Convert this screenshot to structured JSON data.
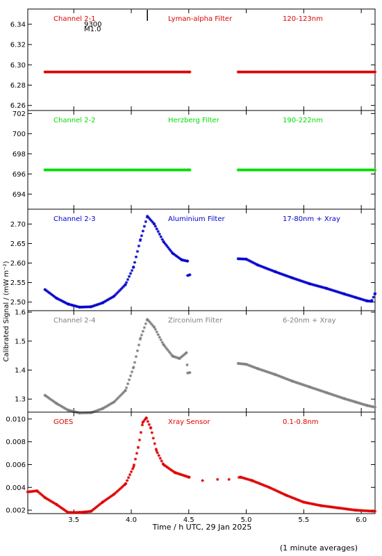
{
  "figure": {
    "ylabel": "Calibrated Signal / (mW m⁻²)",
    "xlabel": "Time / h UTC, 29 Jan 2025",
    "footnote": "(1 minute averages)",
    "flare_marker": {
      "x": 4.14,
      "labels": [
        "9300",
        "M1.0"
      ]
    },
    "xlim": [
      3.1,
      6.12
    ],
    "xticks": [
      3.5,
      4.0,
      4.5,
      5.0,
      5.5,
      6.0
    ],
    "xtick_labels": [
      "3.5",
      "4.0",
      "4.5",
      "5.0",
      "5.5",
      "6.0"
    ]
  },
  "chart_data": [
    {
      "type": "scatter",
      "channel": "Channel 2-1",
      "filter": "Lyman-alpha Filter",
      "band": "120-123nm",
      "color": "#dd0000",
      "ylim": [
        6.255,
        6.355
      ],
      "yticks": [
        6.26,
        6.28,
        6.3,
        6.32,
        6.34
      ],
      "ytick_labels": [
        "6.26",
        "6.28",
        "6.30",
        "6.32",
        "6.34"
      ],
      "points": [
        [
          3.25,
          6.293
        ],
        [
          4.5,
          6.293
        ],
        [
          4.93,
          6.293
        ],
        [
          6.12,
          6.293
        ]
      ]
    },
    {
      "type": "scatter",
      "channel": "Channel 2-2",
      "filter": "Herzberg Filter",
      "band": "190-222nm",
      "color": "#00dd00",
      "ylim": [
        692.5,
        702.3
      ],
      "yticks": [
        694,
        696,
        698,
        700,
        702
      ],
      "ytick_labels": [
        "694",
        "696",
        "698",
        "700",
        "702"
      ],
      "points": [
        [
          3.25,
          696.4
        ],
        [
          4.5,
          696.4
        ],
        [
          4.93,
          696.4
        ],
        [
          6.12,
          696.4
        ]
      ]
    },
    {
      "type": "scatter",
      "channel": "Channel 2-3",
      "filter": "Aluminium Filter",
      "band": "17-80nm + Xray",
      "color": "#0000cc",
      "ylim": [
        2.478,
        2.738
      ],
      "yticks": [
        2.5,
        2.55,
        2.6,
        2.65,
        2.7
      ],
      "ytick_labels": [
        "2.50",
        "2.55",
        "2.60",
        "2.65",
        "2.70"
      ],
      "points": [
        [
          3.25,
          2.532
        ],
        [
          3.35,
          2.51
        ],
        [
          3.45,
          2.495
        ],
        [
          3.55,
          2.487
        ],
        [
          3.65,
          2.488
        ],
        [
          3.75,
          2.498
        ],
        [
          3.85,
          2.515
        ],
        [
          3.95,
          2.545
        ],
        [
          4.02,
          2.59
        ],
        [
          4.08,
          2.66
        ],
        [
          4.14,
          2.72
        ],
        [
          4.2,
          2.7
        ],
        [
          4.28,
          2.655
        ],
        [
          4.36,
          2.625
        ],
        [
          4.44,
          2.608
        ],
        [
          4.49,
          2.605
        ],
        [
          4.49,
          2.568
        ],
        [
          4.93,
          2.611
        ],
        [
          5.0,
          2.61
        ],
        [
          5.1,
          2.595
        ],
        [
          5.25,
          2.578
        ],
        [
          5.4,
          2.562
        ],
        [
          5.55,
          2.547
        ],
        [
          5.7,
          2.535
        ],
        [
          5.85,
          2.521
        ],
        [
          5.95,
          2.512
        ],
        [
          6.05,
          2.503
        ],
        [
          6.09,
          2.502
        ],
        [
          6.12,
          2.522
        ]
      ]
    },
    {
      "type": "scatter",
      "channel": "Channel 2-4",
      "filter": "Zirconium Filter",
      "band": "6-20nm + Xray",
      "color": "#808080",
      "ylim": [
        1.255,
        1.605
      ],
      "yticks": [
        1.3,
        1.4,
        1.5,
        1.6
      ],
      "ytick_labels": [
        "1.3",
        "1.4",
        "1.5",
        "1.6"
      ],
      "points": [
        [
          3.25,
          1.313
        ],
        [
          3.35,
          1.285
        ],
        [
          3.45,
          1.262
        ],
        [
          3.55,
          1.252
        ],
        [
          3.65,
          1.253
        ],
        [
          3.75,
          1.267
        ],
        [
          3.85,
          1.29
        ],
        [
          3.95,
          1.33
        ],
        [
          4.02,
          1.41
        ],
        [
          4.08,
          1.51
        ],
        [
          4.14,
          1.575
        ],
        [
          4.2,
          1.548
        ],
        [
          4.28,
          1.488
        ],
        [
          4.36,
          1.448
        ],
        [
          4.42,
          1.44
        ],
        [
          4.48,
          1.46
        ],
        [
          4.49,
          1.39
        ],
        [
          4.93,
          1.423
        ],
        [
          5.0,
          1.42
        ],
        [
          5.1,
          1.405
        ],
        [
          5.25,
          1.385
        ],
        [
          5.4,
          1.362
        ],
        [
          5.55,
          1.342
        ],
        [
          5.7,
          1.322
        ],
        [
          5.85,
          1.302
        ],
        [
          5.95,
          1.29
        ],
        [
          6.05,
          1.278
        ],
        [
          6.12,
          1.272
        ]
      ]
    },
    {
      "type": "scatter",
      "channel": "GOES",
      "filter": "Xray Sensor",
      "band": "0.1-0.8nm",
      "color": "#dd0000",
      "ylim": [
        0.0017,
        0.0106
      ],
      "yticks": [
        0.002,
        0.004,
        0.006,
        0.008,
        0.01
      ],
      "ytick_labels": [
        "0.002",
        "0.004",
        "0.006",
        "0.008",
        "0.010"
      ],
      "points": [
        [
          3.1,
          0.0036
        ],
        [
          3.18,
          0.0037
        ],
        [
          3.25,
          0.0031
        ],
        [
          3.35,
          0.0025
        ],
        [
          3.45,
          0.0018
        ],
        [
          3.55,
          0.0018
        ],
        [
          3.65,
          0.0019
        ],
        [
          3.75,
          0.0027
        ],
        [
          3.85,
          0.0034
        ],
        [
          3.95,
          0.0043
        ],
        [
          4.02,
          0.0058
        ],
        [
          4.06,
          0.0075
        ],
        [
          4.1,
          0.0097
        ],
        [
          4.13,
          0.0101
        ],
        [
          4.17,
          0.0092
        ],
        [
          4.22,
          0.0072
        ],
        [
          4.28,
          0.006
        ],
        [
          4.38,
          0.0053
        ],
        [
          4.5,
          0.0049
        ],
        [
          4.62,
          0.0046
        ],
        [
          4.75,
          0.0047
        ],
        [
          4.85,
          0.0047
        ],
        [
          4.95,
          0.0049
        ],
        [
          5.05,
          0.0046
        ],
        [
          5.2,
          0.004
        ],
        [
          5.35,
          0.0033
        ],
        [
          5.5,
          0.0027
        ],
        [
          5.65,
          0.0024
        ],
        [
          5.8,
          0.0022
        ],
        [
          5.95,
          0.002
        ],
        [
          6.12,
          0.0019
        ]
      ]
    }
  ]
}
